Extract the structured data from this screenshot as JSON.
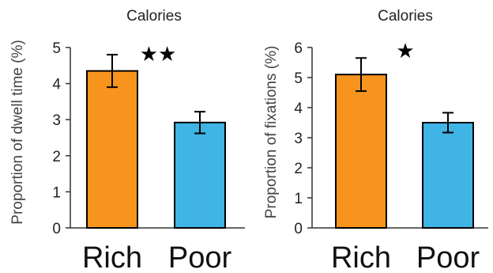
{
  "chart_data": [
    {
      "type": "bar",
      "title": "Calories",
      "ylabel": "Proportion of dwell time (%)",
      "xlabel": "",
      "categories": [
        "Rich",
        "Poor"
      ],
      "values": [
        4.35,
        2.92
      ],
      "error": [
        0.45,
        0.3
      ],
      "ylim": [
        0,
        5
      ],
      "yticks": [
        "0",
        "1",
        "2",
        "3",
        "4",
        "5"
      ],
      "significance": "★★",
      "colors": [
        "#f7941d",
        "#40b4e5"
      ]
    },
    {
      "type": "bar",
      "title": "Calories",
      "ylabel": "Proportion of fixations (%)",
      "xlabel": "",
      "categories": [
        "Rich",
        "Poor"
      ],
      "values": [
        5.1,
        3.5
      ],
      "error": [
        0.55,
        0.33
      ],
      "ylim": [
        0,
        6
      ],
      "yticks": [
        "0",
        "1",
        "2",
        "3",
        "4",
        "5",
        "6"
      ],
      "significance": "★",
      "colors": [
        "#f7941d",
        "#40b4e5"
      ]
    }
  ]
}
